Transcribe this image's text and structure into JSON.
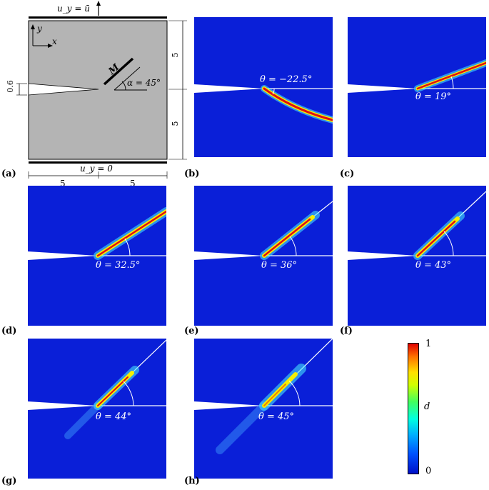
{
  "setup": {
    "top_bc": "u_y = ū",
    "bottom_bc": "u_y = 0",
    "axis_y": "y",
    "axis_x": "x",
    "notch_width": "0.6",
    "material_label": "M",
    "alpha_label": "α = 45°",
    "dim_height_top": "5",
    "dim_height_bottom": "5",
    "dim_width_left": "5",
    "dim_width_right": "5"
  },
  "panels": [
    {
      "label": "(a)"
    },
    {
      "label": "(b)",
      "theta": "θ = −22.5°",
      "theta_deg": -22.5
    },
    {
      "label": "(c)",
      "theta": "θ = 19°",
      "theta_deg": 19
    },
    {
      "label": "(d)",
      "theta": "θ = 32.5°",
      "theta_deg": 32.5
    },
    {
      "label": "(e)",
      "theta": "θ = 36°",
      "theta_deg": 36
    },
    {
      "label": "(f)",
      "theta": "θ = 43°",
      "theta_deg": 43
    },
    {
      "label": "(g)",
      "theta": "θ = 44°",
      "theta_deg": 44
    },
    {
      "label": "(h)",
      "theta": "θ = 45°",
      "theta_deg": 45
    }
  ],
  "colorbar": {
    "max_label": "1",
    "min_label": "0",
    "var_label": "d"
  },
  "colors": {
    "field": "#0a1fd8",
    "specimen": "#b4b4b4"
  }
}
